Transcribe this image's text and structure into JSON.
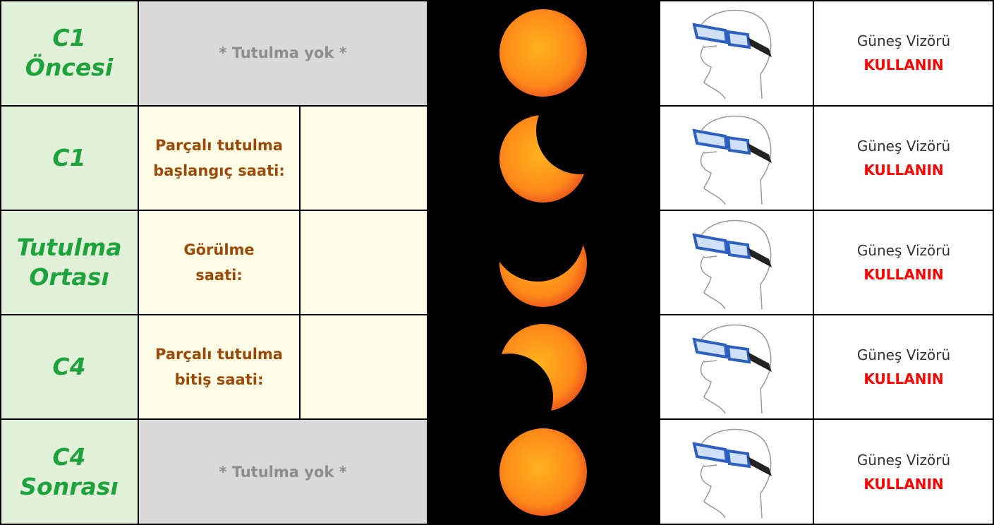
{
  "rows": [
    {
      "phase": [
        "C1",
        "Öncesi"
      ],
      "note": [
        "* Tutulma yok *"
      ],
      "viewer": [
        "Güneş Vizörü",
        "KULLANIN"
      ]
    },
    {
      "phase": [
        "C1"
      ],
      "note": [
        "Parçalı tutulma",
        "başlangıç saati:"
      ],
      "viewer": [
        "Güneş Vizörü",
        "KULLANIN"
      ]
    },
    {
      "phase": [
        "Tutulma",
        "Ortası"
      ],
      "note": [
        "Görülme",
        "saati:"
      ],
      "viewer": [
        "Güneş Vizörü",
        "KULLANIN"
      ]
    },
    {
      "phase": [
        "C4"
      ],
      "note": [
        "Parçalı tutulma",
        "bitiş saati:"
      ],
      "viewer": [
        "Güneş Vizörü",
        "KULLANIN"
      ]
    },
    {
      "phase": [
        "C4",
        "Sonrası"
      ],
      "note": [
        "* Tutulma yok *"
      ],
      "viewer": [
        "Güneş Vizörü",
        "KULLANIN"
      ]
    }
  ]
}
